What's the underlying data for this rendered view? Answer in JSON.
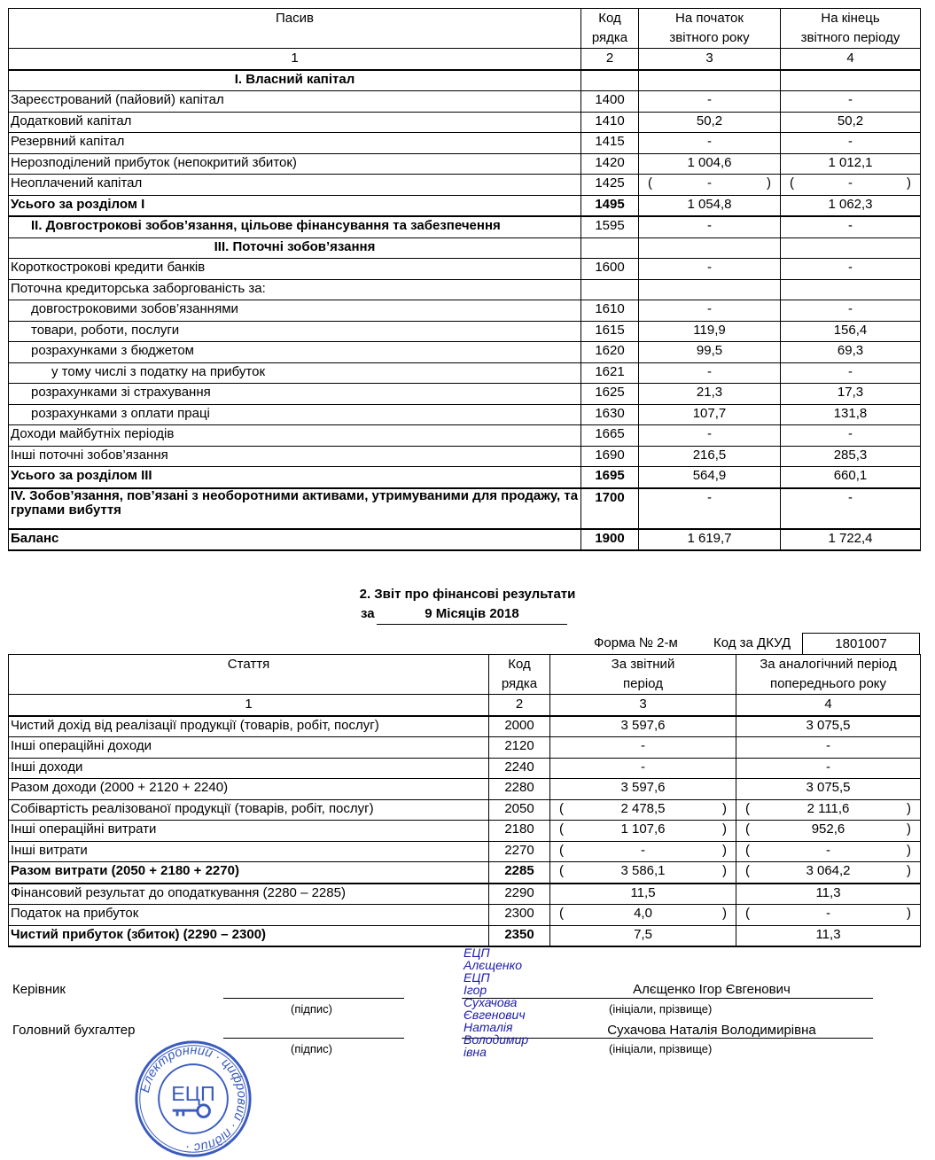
{
  "balance": {
    "headers": [
      "Пасив",
      "Код рядка",
      "На початок звітного року",
      "На кінець звітного періоду"
    ],
    "header_lines": [
      [
        "Пасив"
      ],
      [
        "Код",
        "рядка"
      ],
      [
        "На початок",
        "звітного року"
      ],
      [
        "На кінець",
        "звітного періоду"
      ]
    ],
    "col_numbers": [
      "1",
      "2",
      "3",
      "4"
    ],
    "rows": [
      {
        "label": "I. Власний капітал",
        "code": "",
        "v3": "",
        "v4": "",
        "bold": true,
        "center": true
      },
      {
        "label": "Зареєстрований (пайовий) капітал",
        "code": "1400",
        "v3": "-",
        "v4": "-"
      },
      {
        "label": "Додатковий капітал",
        "code": "1410",
        "v3": "50,2",
        "v4": "50,2"
      },
      {
        "label": "Резервний капітал",
        "code": "1415",
        "v3": "-",
        "v4": "-"
      },
      {
        "label": "Нерозподілений прибуток (непокритий збиток)",
        "code": "1420",
        "v3": "1 004,6",
        "v4": "1 012,1"
      },
      {
        "label": "Неоплачений капітал",
        "code": "1425",
        "v3": "-",
        "v4": "-",
        "paren": true
      },
      {
        "label": "Усього за розділом I",
        "code": "1495",
        "v3": "1 054,8",
        "v4": "1 062,3",
        "bold": true,
        "boldcode": true
      },
      {
        "label": "II. Довгострокові зобов’язання, цільове фінансування та забезпечення",
        "code": "1595",
        "v3": "-",
        "v4": "-",
        "bold": true,
        "indent": 1
      },
      {
        "label": "III. Поточні зобов’язання",
        "code": "",
        "v3": "",
        "v4": "",
        "bold": true,
        "center": true
      },
      {
        "label": "Короткострокові кредити банків",
        "code": "1600",
        "v3": "-",
        "v4": "-"
      },
      {
        "label": "Поточна кредиторська заборгованість за:",
        "code": "",
        "v3": "",
        "v4": ""
      },
      {
        "label": "довгостроковими зобов’язаннями",
        "code": "1610",
        "v3": "-",
        "v4": "-",
        "indent": 1
      },
      {
        "label": "товари, роботи, послуги",
        "code": "1615",
        "v3": "119,9",
        "v4": "156,4",
        "indent": 1
      },
      {
        "label": "розрахунками з бюджетом",
        "code": "1620",
        "v3": "99,5",
        "v4": "69,3",
        "indent": 1
      },
      {
        "label": "у тому числі з податку на прибуток",
        "code": "1621",
        "v3": "-",
        "v4": "-",
        "indent": 2
      },
      {
        "label": "розрахунками зі страхування",
        "code": "1625",
        "v3": "21,3",
        "v4": "17,3",
        "indent": 1
      },
      {
        "label": "розрахунками з оплати праці",
        "code": "1630",
        "v3": "107,7",
        "v4": "131,8",
        "indent": 1
      },
      {
        "label": "Доходи майбутніх періодів",
        "code": "1665",
        "v3": "-",
        "v4": "-"
      },
      {
        "label": "Інші поточні зобов’язання",
        "code": "1690",
        "v3": "216,5",
        "v4": "285,3"
      },
      {
        "label": "Усього за розділом III",
        "code": "1695",
        "v3": "564,9",
        "v4": "660,1",
        "bold": true,
        "boldcode": true
      },
      {
        "label": "IV. Зобов’язання, пов’язані з необоротними активами, утримуваними для продажу, та групами вибуття",
        "code": "1700",
        "v3": "-",
        "v4": "-",
        "bold": true,
        "boldcode": true,
        "tall": true
      },
      {
        "label": "Баланс",
        "code": "1900",
        "v3": "1 619,7",
        "v4": "1 722,4",
        "bold": true,
        "boldcode": true
      }
    ]
  },
  "report": {
    "title": "2. Звіт про фінансові результати",
    "period_prefix": "за",
    "period": "9 Місяців 2018",
    "form": "Форма № 2-м",
    "dkud_label": "Код за ДКУД",
    "dkud_code": "1801007",
    "header_lines": [
      [
        "Стаття"
      ],
      [
        "Код",
        "рядка"
      ],
      [
        "За звітний",
        "період"
      ],
      [
        "За аналогічний період",
        "попереднього року"
      ]
    ],
    "col_numbers": [
      "1",
      "2",
      "3",
      "4"
    ],
    "rows": [
      {
        "label": "Чистий дохід від реалізації продукції (товарів, робіт, послуг)",
        "code": "2000",
        "v3": "3 597,6",
        "v4": "3 075,5"
      },
      {
        "label": "Інші операційні доходи",
        "code": "2120",
        "v3": "-",
        "v4": "-"
      },
      {
        "label": "Інші доходи",
        "code": "2240",
        "v3": "-",
        "v4": "-"
      },
      {
        "label": "Разом доходи (2000 + 2120 + 2240)",
        "code": "2280",
        "v3": "3 597,6",
        "v4": "3 075,5"
      },
      {
        "label": "Собівартість реалізованої продукції (товарів, робіт, послуг)",
        "code": "2050",
        "v3": "2 478,5",
        "v4": "2 111,6",
        "paren": true
      },
      {
        "label": "Інші операційні витрати",
        "code": "2180",
        "v3": "1 107,6",
        "v4": "952,6",
        "paren": true
      },
      {
        "label": "Інші витрати",
        "code": "2270",
        "v3": "-",
        "v4": "-",
        "paren": true
      },
      {
        "label": "Разом витрати (2050 + 2180 + 2270)",
        "code": "2285",
        "v3": "3 586,1",
        "v4": "3 064,2",
        "paren": true,
        "bold": true,
        "boldcode": true
      },
      {
        "label": "Фінансовий результат до оподаткування (2280 – 2285)",
        "code": "2290",
        "v3": "11,5",
        "v4": "11,3"
      },
      {
        "label": "Податок на прибуток",
        "code": "2300",
        "v3": "4,0",
        "v4": "-",
        "paren": true
      },
      {
        "label": "Чистий прибуток (збиток) (2290 – 2300)",
        "code": "2350",
        "v3": "7,5",
        "v4": "11,3",
        "bold": true,
        "boldcode": true
      }
    ]
  },
  "signatures": {
    "director_label": "Керівник",
    "director_name": "Алєщенко Ігор Євгенович",
    "accountant_label": "Головний бухгалтер",
    "accountant_name": "Сухачова Наталія Володимирівна",
    "sign_caption": "(підпис)",
    "name_caption": "(ініціали, прізвище)",
    "ecp_lines": [
      "ЕЦП",
      "Алєщенко",
      "ЕЦП",
      "Ігор",
      "Сухачова",
      "Євгенович",
      "Наталія",
      "Володимир",
      "івна"
    ],
    "stamp": {
      "center": "ЕЦП",
      "ring": "Електронний цифровий підпис",
      "color": "#3a5bbf"
    }
  }
}
